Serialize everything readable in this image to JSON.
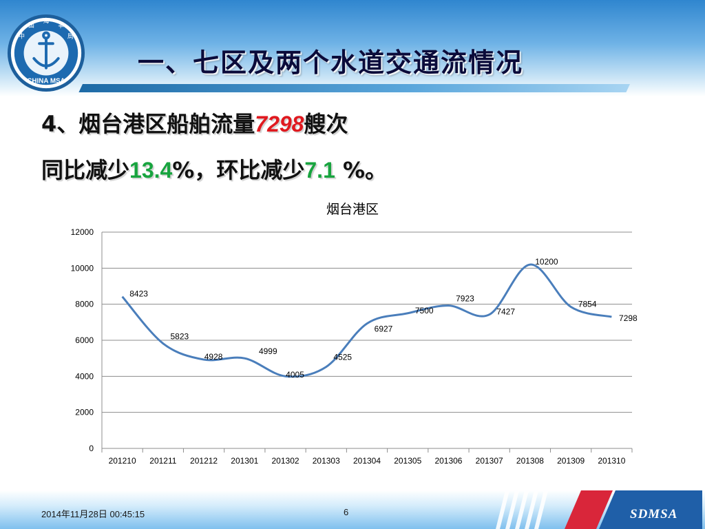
{
  "header": {
    "title": "一、七区及两个水道交通流情况",
    "logo_text": "CHINA MSA",
    "logo_chars": [
      "中",
      "国",
      "海",
      "事",
      "局"
    ]
  },
  "summary": {
    "line1_prefix": "4、烟台港区船舶流量",
    "line1_value": "7298",
    "line1_suffix": "艘次",
    "line2_prefix": "同比减少",
    "line2_yoy": "13.4",
    "line2_mid": "%，环比减少",
    "line2_mom": "7.1",
    "line2_suffix": " %。"
  },
  "chart_data": {
    "type": "line",
    "title": "烟台港区",
    "categories": [
      "201210",
      "201211",
      "201212",
      "201301",
      "201302",
      "201303",
      "201304",
      "201305",
      "201306",
      "201307",
      "201308",
      "201309",
      "201310"
    ],
    "values": [
      8423,
      5823,
      4928,
      4999,
      4005,
      4525,
      6927,
      7500,
      7923,
      7427,
      10200,
      7854,
      7298
    ],
    "y_ticks": [
      "0",
      "2000",
      "4000",
      "6000",
      "8000",
      "10000",
      "12000"
    ],
    "ylim": [
      0,
      12000
    ],
    "grid": true,
    "smooth": true,
    "line_color": "#4a7ebb"
  },
  "footer": {
    "datetime": "2014年11月28日  00:45:15",
    "page": "6",
    "brand": "SDMSA"
  },
  "colors": {
    "highlight_red": "#e0191f",
    "highlight_green": "#18a43f"
  }
}
